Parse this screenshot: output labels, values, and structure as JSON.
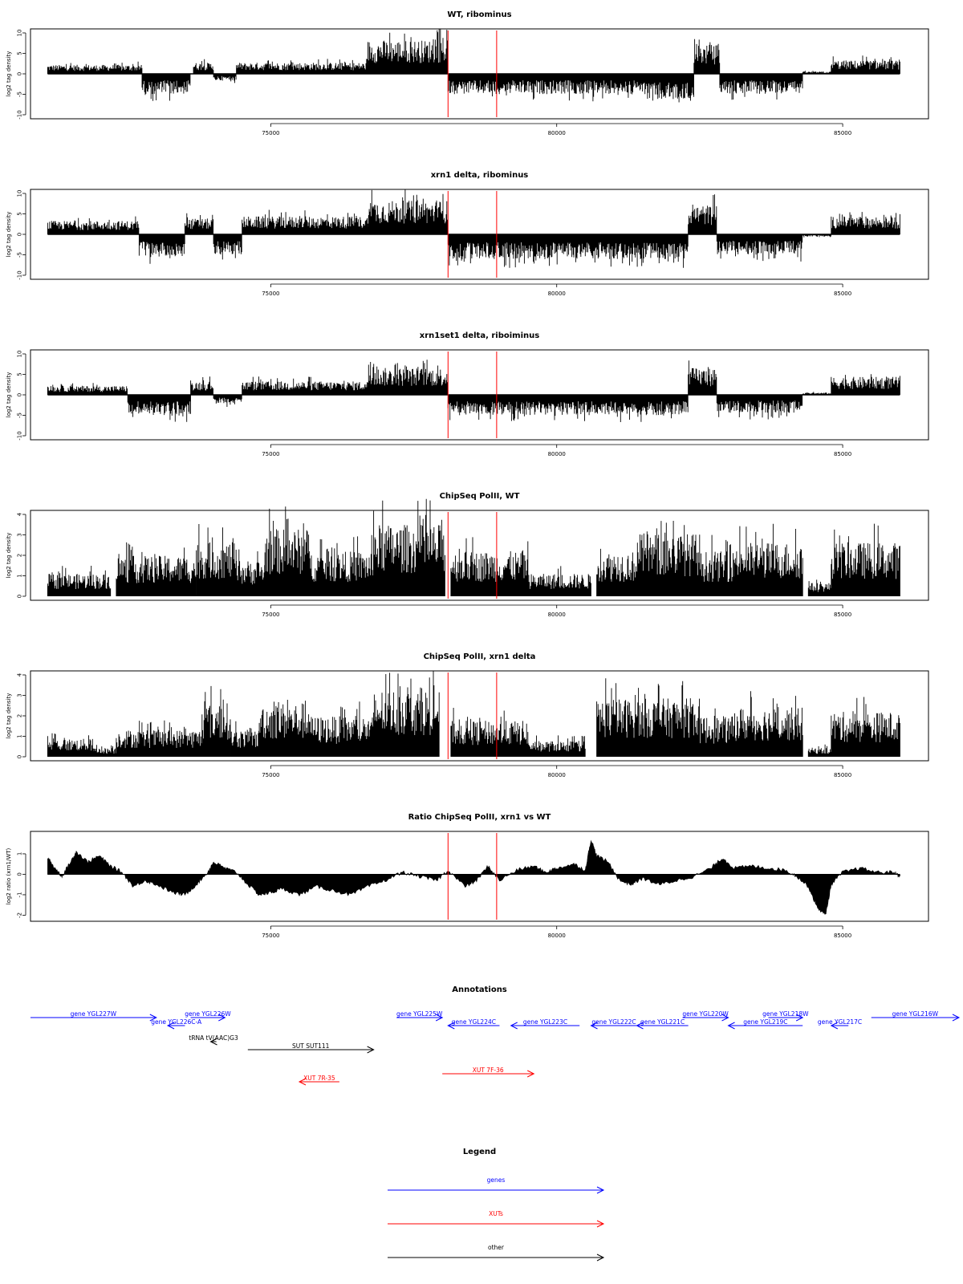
{
  "colors": {
    "gene": "#0000ff",
    "xut": "#ff0000",
    "other": "#000000",
    "marker": "#ff0000",
    "data": "#000000"
  },
  "chart_data": [
    {
      "type": "bar",
      "title": "WT, ribominus",
      "ylabel": "log2 tag density",
      "ylim": [
        -10,
        10
      ],
      "yticks": [
        -10,
        -5,
        0,
        5,
        10
      ],
      "xlim": [
        70800,
        86500
      ],
      "xticks": [
        75000,
        80000,
        85000
      ],
      "markers_x": [
        78100,
        78950
      ],
      "segments": [
        {
          "x": [
            71100,
            72750
          ],
          "level": 2.0,
          "sign": 1
        },
        {
          "x": [
            72750,
            73600
          ],
          "level": 4.5,
          "sign": -1
        },
        {
          "x": [
            73650,
            74000
          ],
          "level": 2.5,
          "sign": 1
        },
        {
          "x": [
            74000,
            74400
          ],
          "level": 1.5,
          "sign": -1
        },
        {
          "x": [
            74400,
            76700
          ],
          "level": 2.5,
          "sign": 1
        },
        {
          "x": [
            76700,
            78100
          ],
          "level": 7.5,
          "sign": 1
        },
        {
          "x": [
            78100,
            81600
          ],
          "level": 4.5,
          "sign": -1
        },
        {
          "x": [
            81600,
            82400
          ],
          "level": 6.0,
          "sign": -1
        },
        {
          "x": [
            82400,
            82850
          ],
          "level": 6.5,
          "sign": 1
        },
        {
          "x": [
            82850,
            84300
          ],
          "level": 4.5,
          "sign": -1
        },
        {
          "x": [
            84300,
            84800
          ],
          "level": 0.5,
          "sign": 1
        },
        {
          "x": [
            84800,
            86000
          ],
          "level": 3.0,
          "sign": 1
        }
      ]
    },
    {
      "type": "bar",
      "title": "xrn1 delta, ribominus",
      "ylabel": "log2 tag density",
      "ylim": [
        -10,
        10
      ],
      "yticks": [
        -10,
        -5,
        0,
        5,
        10
      ],
      "xlim": [
        70800,
        86500
      ],
      "xticks": [
        75000,
        80000,
        85000
      ],
      "markers_x": [
        78100,
        78950
      ],
      "segments": [
        {
          "x": [
            71100,
            72700
          ],
          "level": 3.0,
          "sign": 1
        },
        {
          "x": [
            72700,
            73500
          ],
          "level": 5.0,
          "sign": -1
        },
        {
          "x": [
            73500,
            74000
          ],
          "level": 3.5,
          "sign": 1
        },
        {
          "x": [
            74000,
            74500
          ],
          "level": 4.5,
          "sign": -1
        },
        {
          "x": [
            74500,
            76700
          ],
          "level": 4.0,
          "sign": 1
        },
        {
          "x": [
            76700,
            78100
          ],
          "level": 7.5,
          "sign": 1
        },
        {
          "x": [
            78100,
            82300
          ],
          "level": 5.5,
          "sign": -1
        },
        {
          "x": [
            82300,
            82800
          ],
          "level": 6.5,
          "sign": 1
        },
        {
          "x": [
            82800,
            84300
          ],
          "level": 4.5,
          "sign": -1
        },
        {
          "x": [
            84300,
            84800
          ],
          "level": 0.5,
          "sign": -1
        },
        {
          "x": [
            84800,
            86000
          ],
          "level": 4.0,
          "sign": 1
        }
      ]
    },
    {
      "type": "bar",
      "title": "xrn1set1 delta, riboiminus",
      "ylabel": "log2 tag density",
      "ylim": [
        -10,
        10
      ],
      "yticks": [
        -10,
        -5,
        0,
        5,
        10
      ],
      "xlim": [
        70800,
        86500
      ],
      "xticks": [
        75000,
        80000,
        85000
      ],
      "markers_x": [
        78100,
        78950
      ],
      "segments": [
        {
          "x": [
            71100,
            72500
          ],
          "level": 2.0,
          "sign": 1
        },
        {
          "x": [
            72500,
            73600
          ],
          "level": 4.5,
          "sign": -1
        },
        {
          "x": [
            73600,
            74000
          ],
          "level": 3.0,
          "sign": 1
        },
        {
          "x": [
            74000,
            74500
          ],
          "level": 2.0,
          "sign": -1
        },
        {
          "x": [
            74500,
            76700
          ],
          "level": 3.0,
          "sign": 1
        },
        {
          "x": [
            76700,
            78100
          ],
          "level": 6.0,
          "sign": 1
        },
        {
          "x": [
            78100,
            82300
          ],
          "level": 4.5,
          "sign": -1
        },
        {
          "x": [
            82300,
            82800
          ],
          "level": 6.0,
          "sign": 1
        },
        {
          "x": [
            82800,
            84300
          ],
          "level": 4.0,
          "sign": -1
        },
        {
          "x": [
            84300,
            84800
          ],
          "level": 0.5,
          "sign": 1
        },
        {
          "x": [
            84800,
            86000
          ],
          "level": 4.0,
          "sign": 1
        }
      ]
    },
    {
      "type": "bar",
      "title": "ChipSeq PolII, WT",
      "ylabel": "log2 tag density",
      "ylim": [
        0,
        4
      ],
      "yticks": [
        0,
        1,
        2,
        3,
        4
      ],
      "xlim": [
        70800,
        86500
      ],
      "xticks": [
        75000,
        80000,
        85000
      ],
      "markers_x": [
        78100,
        78950
      ],
      "segments": [
        {
          "x": [
            71100,
            72200
          ],
          "level": 1.0,
          "sign": 1
        },
        {
          "x": [
            72300,
            73700
          ],
          "level": 1.8,
          "sign": 1
        },
        {
          "x": [
            73700,
            74400
          ],
          "level": 2.4,
          "sign": 1
        },
        {
          "x": [
            74400,
            74900
          ],
          "level": 1.6,
          "sign": 1
        },
        {
          "x": [
            74900,
            75700
          ],
          "level": 3.0,
          "sign": 1
        },
        {
          "x": [
            75700,
            76800
          ],
          "level": 2.0,
          "sign": 1
        },
        {
          "x": [
            76800,
            78050
          ],
          "level": 3.2,
          "sign": 1
        },
        {
          "x": [
            78150,
            79500
          ],
          "level": 2.0,
          "sign": 1
        },
        {
          "x": [
            79500,
            80600
          ],
          "level": 1.0,
          "sign": 1
        },
        {
          "x": [
            80700,
            81400
          ],
          "level": 2.0,
          "sign": 1
        },
        {
          "x": [
            81400,
            82500
          ],
          "level": 2.8,
          "sign": 1
        },
        {
          "x": [
            82500,
            83100
          ],
          "level": 2.0,
          "sign": 1
        },
        {
          "x": [
            83100,
            84300
          ],
          "level": 2.4,
          "sign": 1
        },
        {
          "x": [
            84400,
            84800
          ],
          "level": 0.6,
          "sign": 1
        },
        {
          "x": [
            84800,
            86000
          ],
          "level": 2.4,
          "sign": 1
        }
      ]
    },
    {
      "type": "bar",
      "title": "ChipSeq PolII, xrn1 delta",
      "ylabel": "log2 tag density",
      "ylim": [
        0,
        4
      ],
      "yticks": [
        0,
        1,
        2,
        3,
        4
      ],
      "xlim": [
        70800,
        86500
      ],
      "xticks": [
        75000,
        80000,
        85000
      ],
      "markers_x": [
        78100,
        78950
      ],
      "segments": [
        {
          "x": [
            71100,
            71900
          ],
          "level": 0.8,
          "sign": 1
        },
        {
          "x": [
            71900,
            72300
          ],
          "level": 0.4,
          "sign": 1
        },
        {
          "x": [
            72300,
            73800
          ],
          "level": 1.2,
          "sign": 1
        },
        {
          "x": [
            73800,
            74300
          ],
          "level": 2.4,
          "sign": 1
        },
        {
          "x": [
            74300,
            74800
          ],
          "level": 1.2,
          "sign": 1
        },
        {
          "x": [
            74800,
            75700
          ],
          "level": 2.4,
          "sign": 1
        },
        {
          "x": [
            75700,
            76800
          ],
          "level": 1.8,
          "sign": 1
        },
        {
          "x": [
            76800,
            77950
          ],
          "level": 3.0,
          "sign": 1
        },
        {
          "x": [
            78150,
            79500
          ],
          "level": 1.6,
          "sign": 1
        },
        {
          "x": [
            79500,
            80500
          ],
          "level": 0.7,
          "sign": 1
        },
        {
          "x": [
            80700,
            82500
          ],
          "level": 2.6,
          "sign": 1
        },
        {
          "x": [
            82500,
            83100
          ],
          "level": 1.8,
          "sign": 1
        },
        {
          "x": [
            83100,
            84300
          ],
          "level": 2.2,
          "sign": 1
        },
        {
          "x": [
            84400,
            84800
          ],
          "level": 0.4,
          "sign": 1
        },
        {
          "x": [
            84800,
            86000
          ],
          "level": 2.0,
          "sign": 1
        }
      ]
    },
    {
      "type": "area",
      "title": "Ratio ChipSeq PolII, xrn1 vs WT",
      "ylabel": "log2 ratio (xrn1/WT)",
      "ylim": [
        -2.1,
        1.9
      ],
      "yticks": [
        -2,
        -1,
        0,
        1
      ],
      "xlim": [
        70800,
        86500
      ],
      "xticks": [
        75000,
        80000,
        85000
      ],
      "markers_x": [
        78100,
        78950
      ],
      "points": [
        [
          71100,
          0.8
        ],
        [
          71200,
          0.4
        ],
        [
          71350,
          -0.1
        ],
        [
          71500,
          0.6
        ],
        [
          71600,
          1.1
        ],
        [
          71800,
          0.6
        ],
        [
          72000,
          0.9
        ],
        [
          72200,
          0.4
        ],
        [
          72400,
          0.1
        ],
        [
          72600,
          -0.6
        ],
        [
          72800,
          -0.3
        ],
        [
          73000,
          -0.5
        ],
        [
          73300,
          -0.9
        ],
        [
          73500,
          -1.0
        ],
        [
          73700,
          -0.5
        ],
        [
          73900,
          0.1
        ],
        [
          74000,
          0.6
        ],
        [
          74200,
          0.3
        ],
        [
          74400,
          0.1
        ],
        [
          74600,
          -0.5
        ],
        [
          74800,
          -1.0
        ],
        [
          75000,
          -0.9
        ],
        [
          75200,
          -0.7
        ],
        [
          75500,
          -1.0
        ],
        [
          75800,
          -0.6
        ],
        [
          76100,
          -0.8
        ],
        [
          76400,
          -1.0
        ],
        [
          76700,
          -0.6
        ],
        [
          77000,
          -0.3
        ],
        [
          77300,
          0.1
        ],
        [
          77600,
          -0.1
        ],
        [
          77900,
          -0.3
        ],
        [
          78100,
          0.2
        ],
        [
          78400,
          -0.6
        ],
        [
          78600,
          -0.3
        ],
        [
          78800,
          0.4
        ],
        [
          79000,
          -0.3
        ],
        [
          79300,
          0.2
        ],
        [
          79600,
          0.4
        ],
        [
          79800,
          0.1
        ],
        [
          80000,
          0.3
        ],
        [
          80300,
          0.5
        ],
        [
          80500,
          0.2
        ],
        [
          80600,
          1.7
        ],
        [
          80700,
          0.9
        ],
        [
          80900,
          0.6
        ],
        [
          81100,
          -0.3
        ],
        [
          81300,
          -0.5
        ],
        [
          81500,
          -0.2
        ],
        [
          81800,
          -0.5
        ],
        [
          82100,
          -0.3
        ],
        [
          82400,
          -0.1
        ],
        [
          82700,
          0.3
        ],
        [
          82900,
          0.8
        ],
        [
          83100,
          0.3
        ],
        [
          83400,
          0.4
        ],
        [
          83700,
          0.3
        ],
        [
          84000,
          0.2
        ],
        [
          84200,
          -0.1
        ],
        [
          84400,
          -0.6
        ],
        [
          84550,
          -1.6
        ],
        [
          84700,
          -2.0
        ],
        [
          84800,
          -0.5
        ],
        [
          85000,
          0.1
        ],
        [
          85300,
          0.3
        ],
        [
          85600,
          0.1
        ],
        [
          85900,
          0.1
        ],
        [
          86000,
          -0.1
        ]
      ]
    }
  ],
  "annotations": {
    "title": "Annotations",
    "xlim": [
      70800,
      86500
    ],
    "features": [
      {
        "label": "gene YGL227W",
        "type": "gene",
        "start": 70000,
        "end": 73000,
        "dir": "+",
        "row": 0
      },
      {
        "label": "gene YGL226C-A",
        "type": "gene",
        "start": 73200,
        "end": 73500,
        "dir": "-",
        "row": 1
      },
      {
        "label": "gene YGL226W",
        "type": "gene",
        "start": 73600,
        "end": 74200,
        "dir": "+",
        "row": 0
      },
      {
        "label": "tRNA tV(AAC)G3",
        "type": "other",
        "start": 73950,
        "end": 74050,
        "dir": "-",
        "row": 3
      },
      {
        "label": "SUT SUT111",
        "type": "other",
        "start": 74600,
        "end": 76800,
        "dir": "+",
        "row": 4
      },
      {
        "label": "XUT 7R-35",
        "type": "xut",
        "start": 75500,
        "end": 76200,
        "dir": "-",
        "row": 8
      },
      {
        "label": "gene YGL225W",
        "type": "gene",
        "start": 77200,
        "end": 78000,
        "dir": "+",
        "row": 0
      },
      {
        "label": "gene YGL224C",
        "type": "gene",
        "start": 78100,
        "end": 79000,
        "dir": "-",
        "row": 1
      },
      {
        "label": "XUT 7F-36",
        "type": "xut",
        "start": 78000,
        "end": 79600,
        "dir": "+",
        "row": 7
      },
      {
        "label": "gene YGL223C",
        "type": "gene",
        "start": 79200,
        "end": 80400,
        "dir": "-",
        "row": 1
      },
      {
        "label": "gene YGL222C",
        "type": "gene",
        "start": 80600,
        "end": 81400,
        "dir": "-",
        "row": 1
      },
      {
        "label": "gene YGL221C",
        "type": "gene",
        "start": 81400,
        "end": 82300,
        "dir": "-",
        "row": 1
      },
      {
        "label": "gene YGL220W",
        "type": "gene",
        "start": 82200,
        "end": 83000,
        "dir": "+",
        "row": 0
      },
      {
        "label": "gene YGL219C",
        "type": "gene",
        "start": 83000,
        "end": 84300,
        "dir": "-",
        "row": 1
      },
      {
        "label": "gene YGL218W",
        "type": "gene",
        "start": 83700,
        "end": 84300,
        "dir": "+",
        "row": 0
      },
      {
        "label": "gene YGL217C",
        "type": "gene",
        "start": 84800,
        "end": 85100,
        "dir": "-",
        "row": 1
      },
      {
        "label": "gene YGL216W",
        "type": "gene",
        "start": 85500,
        "end": 87500,
        "dir": "+",
        "row": 0
      }
    ]
  },
  "legend": {
    "title": "Legend",
    "items": [
      {
        "label": "genes",
        "type": "gene"
      },
      {
        "label": "XUTs",
        "type": "xut"
      },
      {
        "label": "other",
        "type": "other"
      }
    ]
  }
}
